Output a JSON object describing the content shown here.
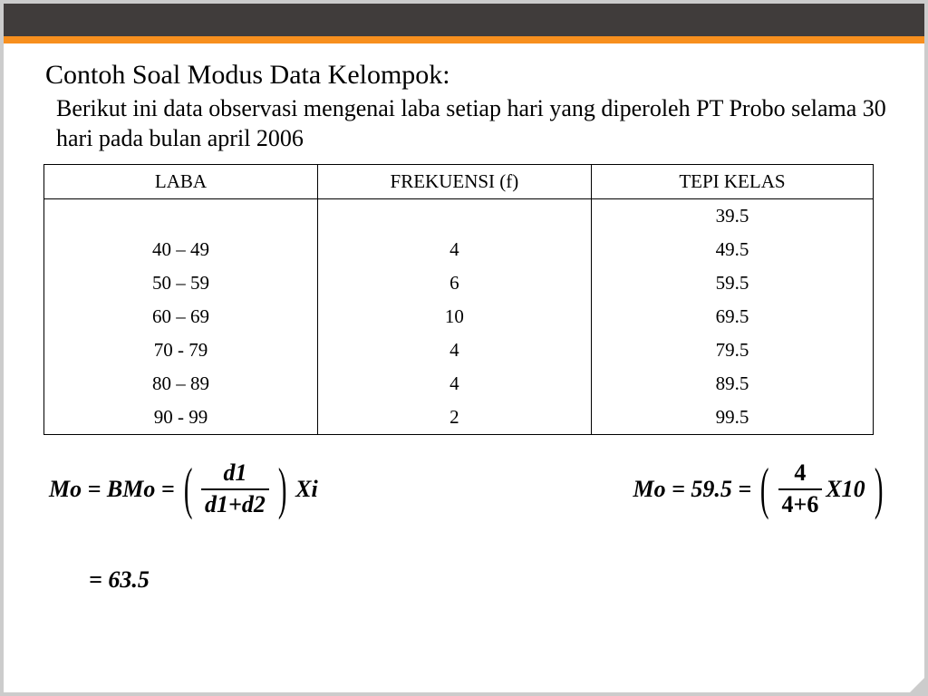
{
  "header": {
    "dark_bar_color": "#403c3b",
    "accent_color": "#f78f1e",
    "border_color": "#cccccc"
  },
  "title": "Contoh Soal Modus Data Kelompok:",
  "subtitle": "Berikut ini data observasi mengenai laba setiap hari yang diperoleh PT Probo selama 30 hari pada bulan april 2006",
  "table": {
    "columns": [
      "LABA",
      "FREKUENSI (f)",
      "TEPI KELAS"
    ],
    "column_widths_pct": [
      33,
      33,
      34
    ],
    "rows": [
      {
        "laba": "",
        "freq": "",
        "tepi": "39.5"
      },
      {
        "laba": "40 – 49",
        "freq": "4",
        "tepi": "49.5"
      },
      {
        "laba": "50 – 59",
        "freq": "6",
        "tepi": "59.5"
      },
      {
        "laba": "60 – 69",
        "freq": "10",
        "tepi": "69.5"
      },
      {
        "laba": "70  - 79",
        "freq": "4",
        "tepi": "79.5"
      },
      {
        "laba": "80 – 89",
        "freq": "4",
        "tepi": "89.5"
      },
      {
        "laba": "90 - 99",
        "freq": "2",
        "tepi": "99.5"
      }
    ],
    "font_family": "Times New Roman",
    "font_size_pt": 16,
    "border_color": "#000000"
  },
  "formula_general": {
    "lhs": "Mo = BMo =",
    "numerator": "d1",
    "denominator": "d1+d2",
    "suffix": "Xi"
  },
  "formula_numeric": {
    "lhs": "Mo = 59.5 =",
    "numerator": "4",
    "denominator": "4+6",
    "suffix": "X10"
  },
  "result": "= 63.5"
}
